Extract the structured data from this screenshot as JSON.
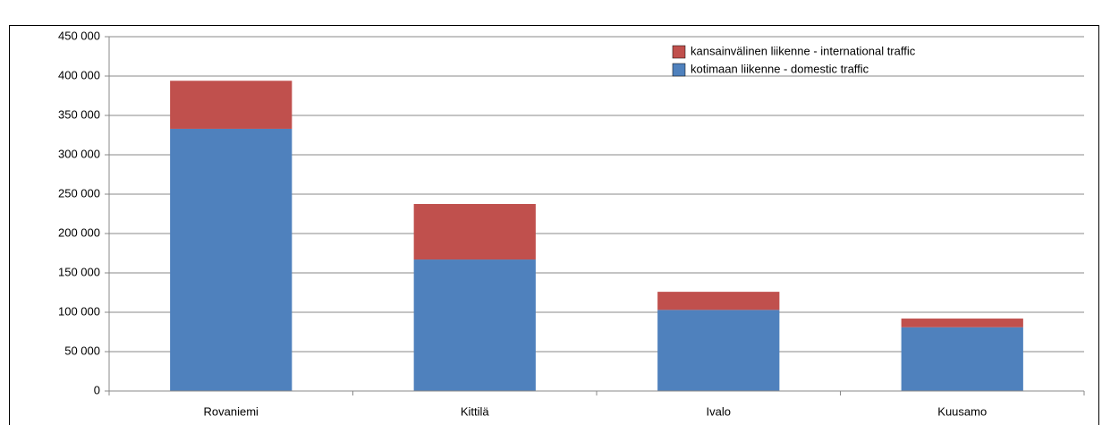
{
  "chart_data": {
    "type": "stacked_bar",
    "categories": [
      "Rovaniemi",
      "Kittilä",
      "Ivalo",
      "Kuusamo"
    ],
    "series": [
      {
        "name": "kotimaan liikenne - domestic traffic",
        "color": "#4f81bd",
        "values": [
          333000,
          167000,
          103000,
          81000
        ]
      },
      {
        "name": "kansainvälinen liikenne - international traffic",
        "color": "#c0504d",
        "values": [
          61000,
          70500,
          23000,
          11000
        ]
      }
    ],
    "ylim": [
      0,
      450000
    ],
    "yticks": [
      0,
      {
        "value": 50000,
        "label": "50 000"
      },
      {
        "value": 100000,
        "label": "100 000"
      },
      {
        "value": 150000,
        "label": "150 000"
      },
      {
        "value": 200000,
        "label": "200 000"
      },
      {
        "value": 250000,
        "label": "250 000"
      },
      {
        "value": 300000,
        "label": "300 000"
      },
      {
        "value": 350000,
        "label": "350 000"
      },
      {
        "value": 400000,
        "label": "400 000"
      },
      {
        "value": 450000,
        "label": "450 000"
      }
    ],
    "grid": true
  }
}
